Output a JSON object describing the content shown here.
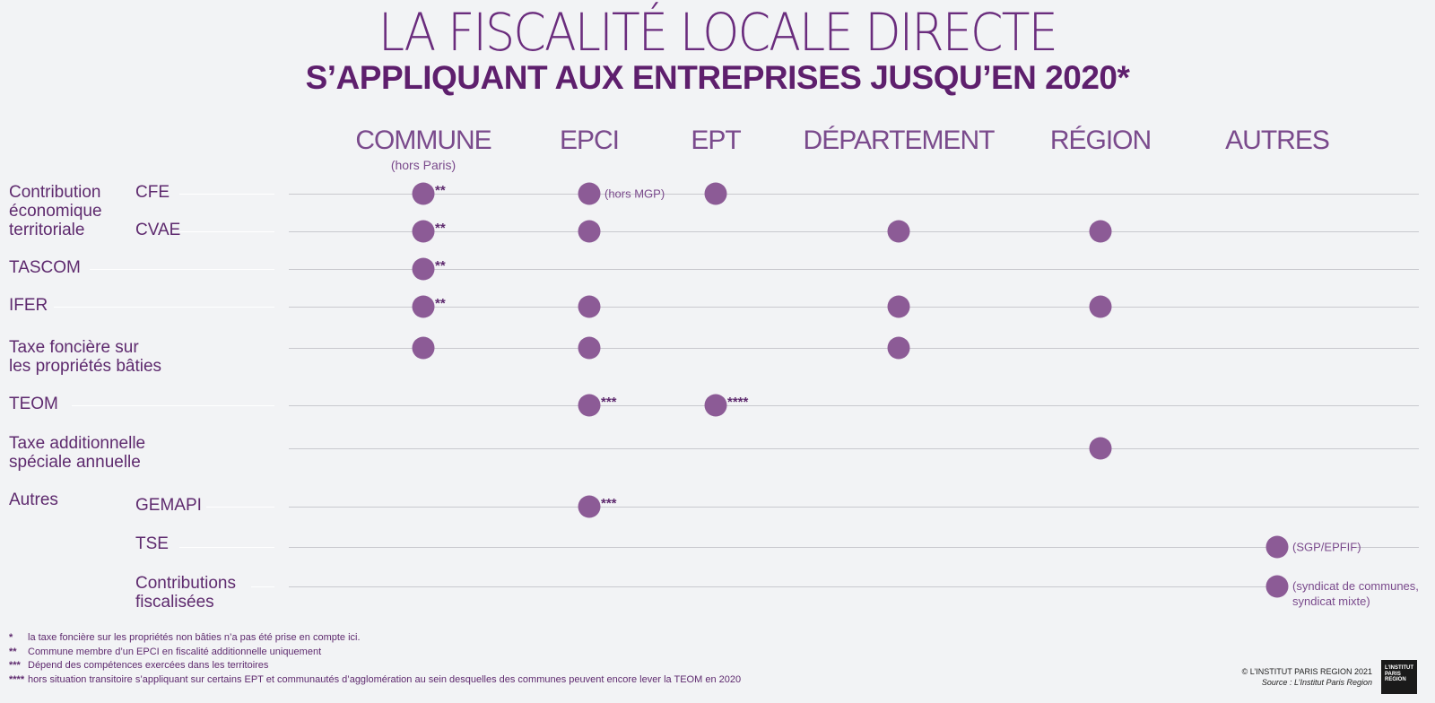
{
  "header": {
    "title": "LA FISCALITÉ LOCALE DIRECTE",
    "subtitle": "S’APPLIQUANT AUX ENTREPRISES JUSQU’EN 2020*"
  },
  "columns": [
    {
      "id": "commune",
      "label": "COMMUNE",
      "sub": "(hors Paris)"
    },
    {
      "id": "epci",
      "label": "EPCI"
    },
    {
      "id": "ept",
      "label": "EPT"
    },
    {
      "id": "departement",
      "label": "DÉPARTEMENT"
    },
    {
      "id": "region",
      "label": "RÉGION"
    },
    {
      "id": "autres",
      "label": "AUTRES"
    }
  ],
  "groups": {
    "cet": [
      "Contribution",
      "économique",
      "territoriale"
    ],
    "tfpb": [
      "Taxe foncière sur",
      "les propriétés bâties"
    ],
    "tasa": [
      "Taxe additionnelle",
      "spéciale annuelle"
    ],
    "autres": "Autres"
  },
  "rows": [
    {
      "label": "CFE",
      "cells": {
        "commune": {
          "stars": "**"
        },
        "epci": {
          "note": "(hors MGP)"
        },
        "ept": {}
      }
    },
    {
      "label": "CVAE",
      "cells": {
        "commune": {
          "stars": "**"
        },
        "epci": {},
        "departement": {},
        "region": {}
      }
    },
    {
      "label": "TASCOM",
      "cells": {
        "commune": {
          "stars": "**"
        }
      }
    },
    {
      "label": "IFER",
      "cells": {
        "commune": {
          "stars": "**"
        },
        "epci": {},
        "departement": {},
        "region": {}
      }
    },
    {
      "label": "",
      "cells": {
        "commune": {},
        "epci": {},
        "departement": {}
      }
    },
    {
      "label": "TEOM",
      "cells": {
        "epci": {
          "stars": "***"
        },
        "ept": {
          "stars": "****"
        }
      }
    },
    {
      "label": "",
      "cells": {
        "region": {}
      }
    },
    {
      "label": "GEMAPI",
      "cells": {
        "epci": {
          "stars": "***"
        }
      }
    },
    {
      "label": "TSE",
      "cells": {
        "autres": {
          "note": "(SGP/EPFIF)"
        }
      }
    },
    {
      "label": "Contributions fiscalisées",
      "label_lines": [
        "Contributions",
        "fiscalisées"
      ],
      "cells": {
        "autres": {
          "note_lines": [
            "(syndicat de communes,",
            "syndicat mixte)"
          ]
        }
      }
    }
  ],
  "footnotes": [
    {
      "mark": "*",
      "text": "la taxe foncière sur les propriétés non bâties n’a pas été prise en compte ici."
    },
    {
      "mark": "**",
      "text": "Commune membre d’un EPCI en fiscalité additionnelle uniquement"
    },
    {
      "mark": "***",
      "text": "Dépend des compétences exercées dans les territoires"
    },
    {
      "mark": "****",
      "text": "hors situation transitoire s’appliquant sur certains EPT et communautés d’agglomération au sein desquelles des communes peuvent encore lever la TEOM en 2020"
    }
  ],
  "copyright": "© L’INSTITUT PARIS REGION 2021",
  "source": "Source : L’Institut Paris Region",
  "logo": {
    "lines": [
      "L’INSTITUT",
      "PARIS",
      "REGION"
    ]
  },
  "colors": {
    "dot": "#8c5b96",
    "title": "#6a2c7d",
    "text": "#5e2a6e"
  }
}
